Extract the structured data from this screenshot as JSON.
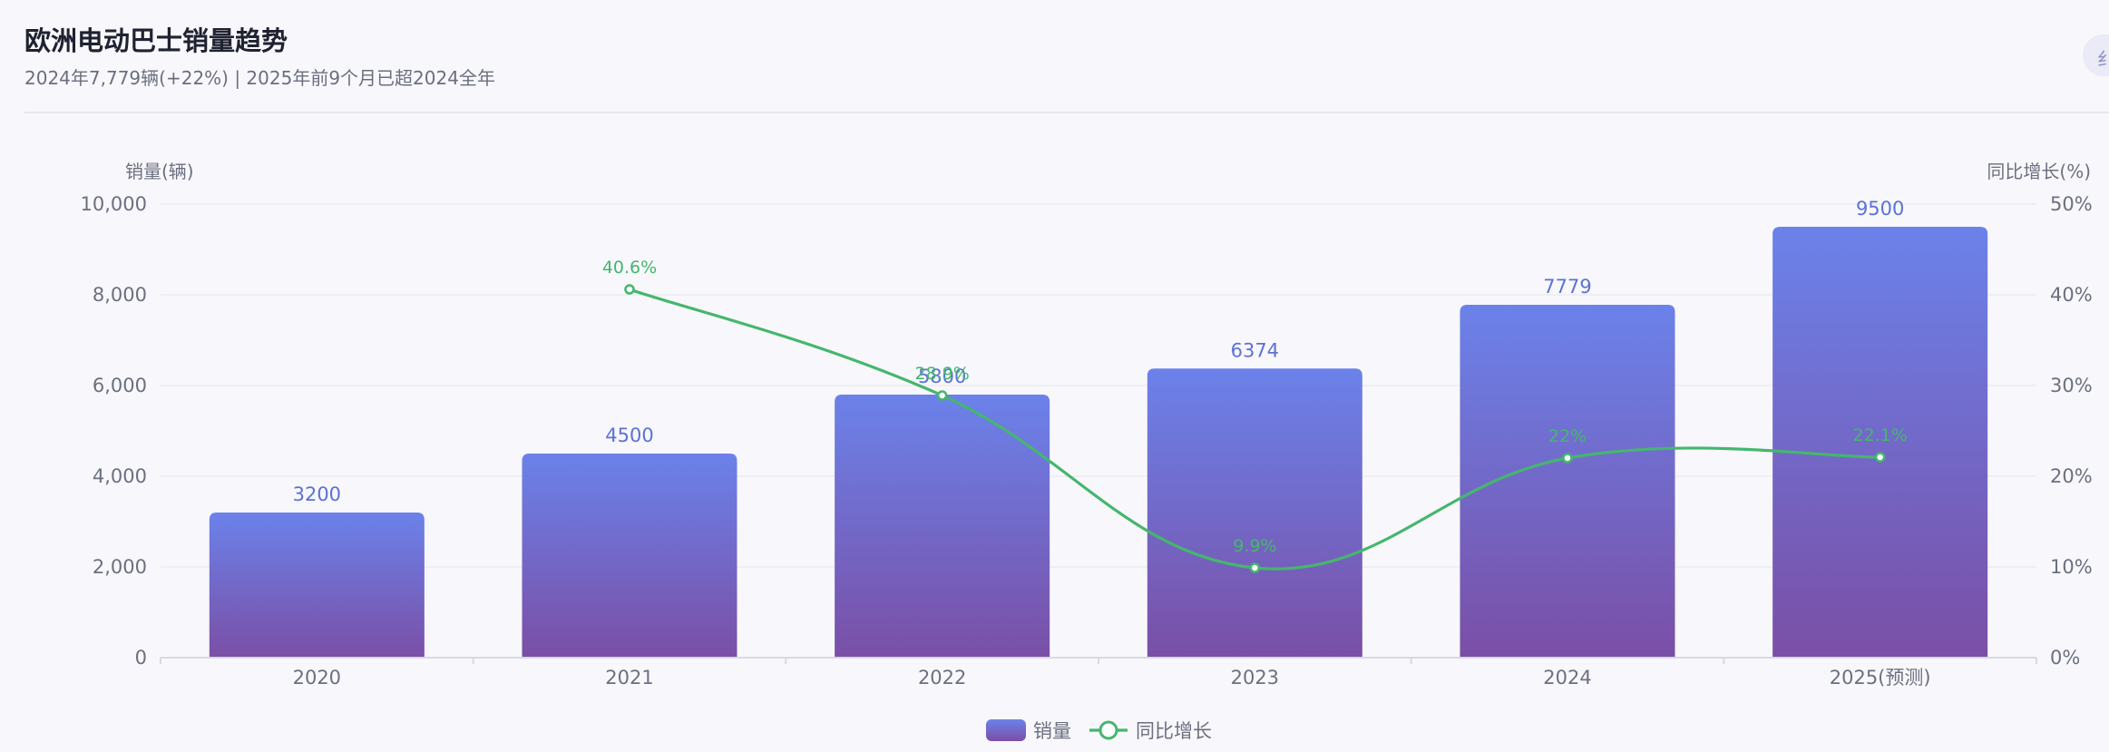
{
  "header": {
    "title": "欧洲电动巴士销量趋势",
    "subtitle": "2024年7,779辆(+22%) | 2025年前9个月已超2024全年",
    "corner_chip": "纟"
  },
  "colors": {
    "bar_top": "#6b82ea",
    "bar_bottom": "#7a4fa6",
    "bar_label": "#5b72d6",
    "line": "#45b66e",
    "axis_text": "#6b7080",
    "grid": "#ececf3"
  },
  "chart_data": {
    "type": "bar",
    "categories": [
      "2020",
      "2021",
      "2022",
      "2023",
      "2024",
      "2025(预测)"
    ],
    "series": [
      {
        "name": "销量",
        "type": "bar",
        "axis": "left",
        "values": [
          3200,
          4500,
          5800,
          6374,
          7779,
          9500
        ],
        "labels": [
          "3200",
          "4500",
          "5800",
          "6374",
          "7779",
          "9500"
        ]
      },
      {
        "name": "同比增长",
        "type": "line",
        "axis": "right",
        "values": [
          null,
          40.6,
          28.9,
          9.9,
          22,
          22.1
        ],
        "labels": [
          "",
          "40.6%",
          "28.9%",
          "9.9%",
          "22%",
          "22.1%"
        ]
      }
    ],
    "ylabel_left": "销量(辆)",
    "ylabel_right": "同比增长(%)",
    "ylim_left": [
      0,
      10000
    ],
    "ylim_right": [
      0,
      50
    ],
    "yticks_left": [
      "0",
      "2,000",
      "4,000",
      "6,000",
      "8,000",
      "10,000"
    ],
    "yticks_right": [
      "0%",
      "10%",
      "20%",
      "30%",
      "40%",
      "50%"
    ],
    "legend": [
      "销量",
      "同比增长"
    ],
    "legend_position": "bottom-center",
    "grid": true
  }
}
